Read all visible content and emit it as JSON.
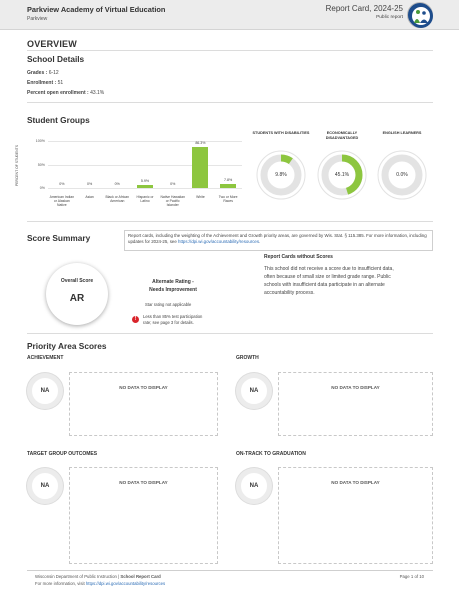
{
  "header": {
    "school_name": "Parkview Academy of Virtual Education",
    "district": "Parkview",
    "report_title": "Report Card, 2024-25",
    "report_subtitle": "Public report"
  },
  "overview": {
    "heading": "OVERVIEW",
    "school_details_heading": "School Details",
    "details": [
      {
        "label": "Grades :",
        "value": "6-12"
      },
      {
        "label": "Enrollment :",
        "value": "51"
      },
      {
        "label": "Percent open enrollment :",
        "value": "43.1%"
      }
    ]
  },
  "student_groups": {
    "heading": "Student Groups",
    "y_axis_title": "PERCENT OF STUDENTS",
    "y_ticks": [
      "100%",
      "50%",
      "0%"
    ]
  },
  "chart_data": [
    {
      "type": "bar",
      "title": "",
      "ylabel": "PERCENT OF STUDENTS",
      "ylim": [
        0,
        100
      ],
      "categories": [
        "American Indian or Alaskan Native",
        "Asian",
        "Black or African American",
        "Hispanic or Latino",
        "Native Hawaiian or Pacific Islander",
        "White",
        "Two or More Races"
      ],
      "values": [
        0,
        0,
        0,
        5.9,
        0,
        86.3,
        7.8
      ],
      "value_labels": [
        "0%",
        "0%",
        "0%",
        "5.9%",
        "0%",
        "86.3%",
        "7.8%"
      ],
      "color": "#8dc63f"
    },
    {
      "type": "pie",
      "title": "STUDENTS WITH DISABILITIES",
      "values": [
        9.8,
        90.2
      ],
      "label": "9.8%",
      "colors": [
        "#8dc63f",
        "#e3e3e3"
      ]
    },
    {
      "type": "pie",
      "title": "ECONOMICALLY DISADVANTAGED",
      "values": [
        45.1,
        54.9
      ],
      "label": "45.1%",
      "colors": [
        "#8dc63f",
        "#e3e3e3"
      ]
    },
    {
      "type": "pie",
      "title": "ENGLISH LEARNERS",
      "values": [
        0,
        100
      ],
      "label": "0.0%",
      "colors": [
        "#8dc63f",
        "#e3e3e3"
      ]
    }
  ],
  "score_summary": {
    "heading": "Score Summary",
    "note_lines": [
      "Report cards, including the weighting of the Achievement and Growth priority areas, are governed by Wis. Stat. § 115.385. For",
      "more information, including updates for 2024-25, see "
    ],
    "note_link": "https://dpi.wi.gov/accountability/resources",
    "note_end": ".",
    "overall_score_label": "Overall Score",
    "overall_score_value": "AR",
    "rating_lines": [
      "Alternate Rating -",
      "Needs Improvement"
    ],
    "star_text": "Star rating not applicable",
    "warning_lines": [
      "Less than 85% test participation",
      "rate; see page 3 for details."
    ],
    "warning_icon": "!",
    "without_scores_title": "Report Cards without Scores",
    "without_scores_lines": [
      "This school did not receive a score due to insufficient data,",
      "often because of small size or limited grade range. Public",
      "schools with insufficient data participate in an alternate",
      "accountability process."
    ]
  },
  "priority_areas": {
    "heading": "Priority Area Scores",
    "areas": [
      {
        "label": "ACHIEVEMENT",
        "score": "NA",
        "message": "NO DATA TO DISPLAY"
      },
      {
        "label": "GROWTH",
        "score": "NA",
        "message": "NO DATA TO DISPLAY"
      },
      {
        "label": "TARGET GROUP OUTCOMES",
        "score": "NA",
        "message": "NO DATA TO DISPLAY"
      },
      {
        "label": "ON-TRACK TO GRADUATION",
        "score": "NA",
        "message": "NO DATA TO DISPLAY"
      }
    ]
  },
  "footer": {
    "line1_a": "Wisconsin Department of Public Instruction | ",
    "line1_b": "School Report Card",
    "line2_a": "For more information, visit ",
    "line2_link": "https://dpi.wi.gov/accountability/resources",
    "page": "Page 1 of 10"
  }
}
